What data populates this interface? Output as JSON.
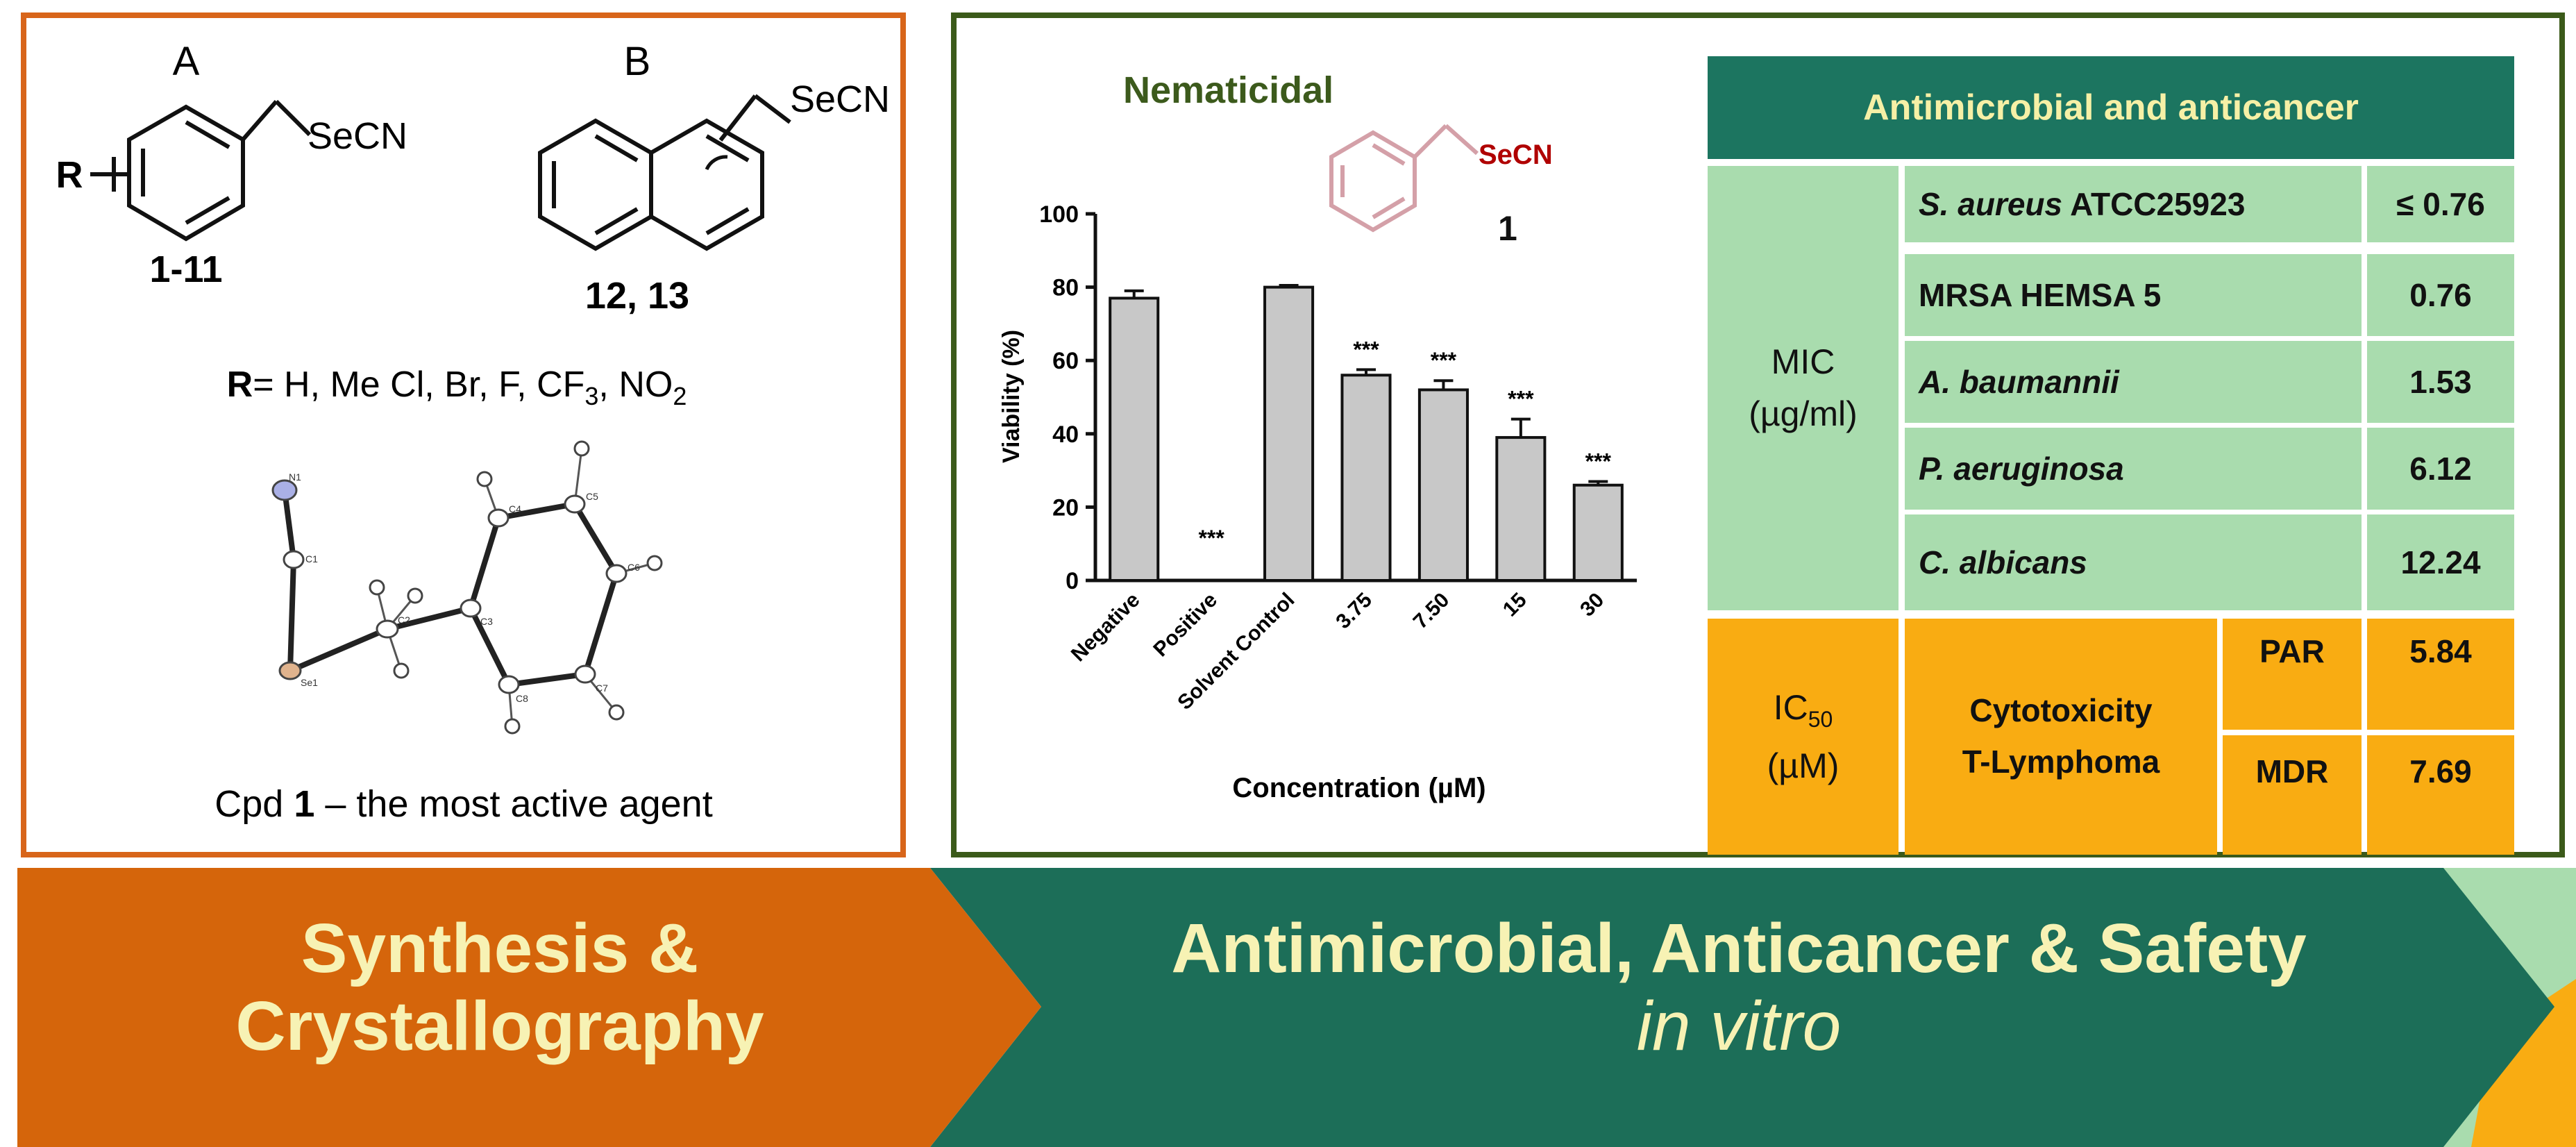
{
  "synthesis": {
    "label_a": "A",
    "label_b": "B",
    "substituent_a": "R",
    "group_a": "SeCN",
    "group_b": "SeCN",
    "compounds_a": "1-11",
    "compounds_b": "12, 13",
    "r_groups_prefix": "R",
    "r_groups_text": "= H, Me Cl, Br, F, CF",
    "r_sub_3": "3",
    "r_groups_tail": ", NO",
    "r_sub_2": "2",
    "crystal_atoms": {
      "n1": "N1",
      "c1": "C1",
      "c2": "C2",
      "se1": "Se1",
      "c3": "C3",
      "c4": "C4",
      "c5": "C5",
      "c6": "C6",
      "c7": "C7",
      "c8": "C8"
    },
    "caption_prefix": "Cpd ",
    "caption_num": "1",
    "caption_suffix": " – the most active agent"
  },
  "nematicidal": {
    "title": "Nematicidal",
    "compound_group": "SeCN",
    "compound_num": "1",
    "colors": {
      "title": "#3c5a1c",
      "bar": "#c8c8c8",
      "secn": "#b00000",
      "ring": "#d4a0a8"
    }
  },
  "chart_data": {
    "type": "bar",
    "categories": [
      "Negative",
      "Positive",
      "Solvent Control",
      "3.75",
      "7.50",
      "15",
      "30"
    ],
    "values": [
      77,
      0,
      80,
      56,
      52,
      39,
      26
    ],
    "errors": [
      2,
      0,
      0.5,
      1.5,
      2.5,
      5,
      1
    ],
    "significance": [
      "",
      "***",
      "",
      "***",
      "***",
      "***",
      "***"
    ],
    "ylabel": "Viability (%)",
    "xlabel": "Concentration (µM)",
    "ylim": [
      0,
      100
    ],
    "yticks": [
      "0",
      "20",
      "40",
      "60",
      "80",
      "100"
    ]
  },
  "table": {
    "header": "Antimicrobial and anticancer",
    "mic_label_1": "MIC",
    "mic_label_2": "(µg/ml)",
    "rows": [
      {
        "org_italic": "S. aureus",
        "org_rest": " ATCC25923",
        "value": "≤ 0.76"
      },
      {
        "org_italic": "",
        "org_rest": "MRSA HEMSA 5",
        "value": "0.76"
      },
      {
        "org_italic": "A. baumannii",
        "org_rest": "",
        "value": "1.53"
      },
      {
        "org_italic": "P. aeruginosa",
        "org_rest": "",
        "value": "6.12"
      },
      {
        "org_italic": "C. albicans",
        "org_rest": "",
        "value": "12.24"
      }
    ],
    "ic50_label": "IC",
    "ic50_sub": "50",
    "ic50_unit": "(µM)",
    "cyto_1": "Cytotoxicity",
    "cyto_2": "T-Lymphoma",
    "par_label": "PAR",
    "par_value": "5.84",
    "mdr_label": "MDR",
    "mdr_value": "7.69",
    "colors": {
      "header": "#1c7560",
      "header_text": "#f6f0a6",
      "green": "#a9dcae",
      "orange": "#f9ac12"
    }
  },
  "banner": {
    "left_line1": "Synthesis &",
    "left_line2": "Crystallography",
    "right_line1": "Antimicrobial, Anticancer & Safety",
    "right_line2": "in vitro",
    "colors": {
      "left": "#d5650b",
      "right": "#1c6e58",
      "text": "#f7f2b4",
      "tail_light": "#a9dcae",
      "tail_orange": "#f9ac12"
    }
  }
}
